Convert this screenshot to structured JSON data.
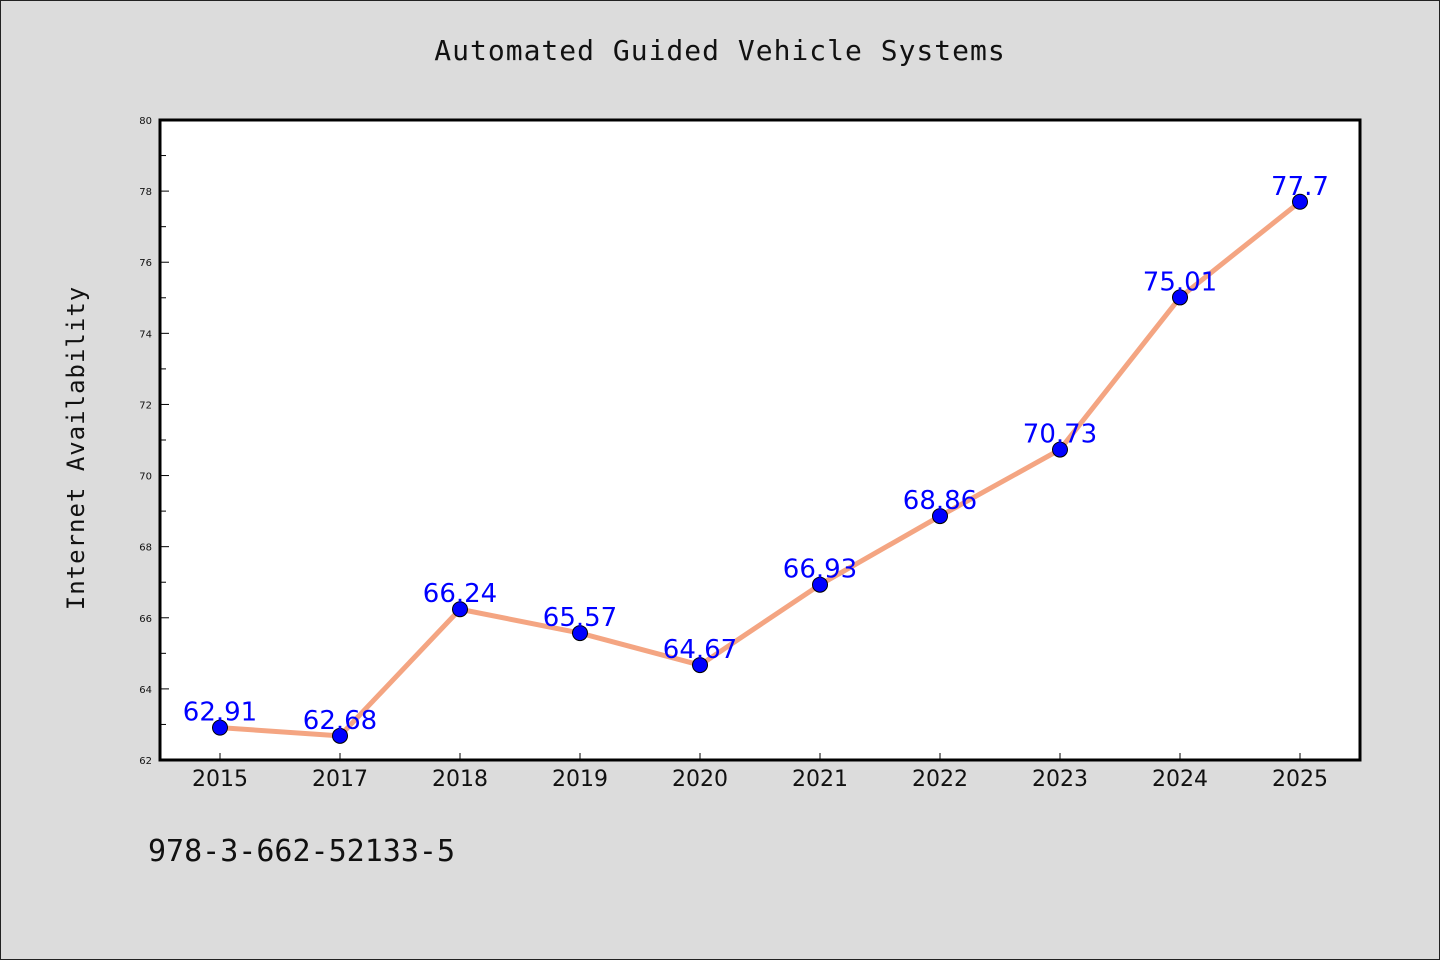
{
  "chart_data": {
    "type": "line",
    "title": "Automated Guided Vehicle Systems",
    "xlabel": "",
    "ylabel": "Internet Availability",
    "categories": [
      "2015",
      "2017",
      "2018",
      "2019",
      "2020",
      "2021",
      "2022",
      "2023",
      "2024",
      "2025"
    ],
    "series": [
      {
        "values": [
          62.91,
          62.68,
          66.24,
          65.57,
          64.67,
          66.93,
          68.86,
          70.73,
          75.01,
          77.7
        ],
        "labels": [
          "62.91",
          "62.68",
          "66.24",
          "65.57",
          "64.67",
          "66.93",
          "68.86",
          "70.73",
          "75.01",
          "77.7"
        ]
      }
    ],
    "ylim": [
      62,
      80
    ],
    "yticks": [
      "62",
      "64",
      "66",
      "68",
      "70",
      "72",
      "74",
      "76",
      "78",
      "80"
    ],
    "grid": false,
    "colors": {
      "line": "#f4a582",
      "marker": "#0000ff",
      "data_label": "#0000ff",
      "background": "#dcdcdc",
      "plot_background": "#ffffff"
    }
  },
  "footer": {
    "text": "978-3-662-52133-5"
  }
}
